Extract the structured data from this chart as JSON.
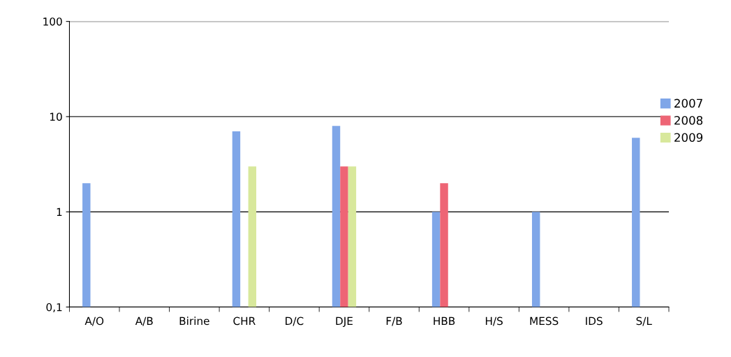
{
  "chart_data": {
    "type": "bar",
    "log": true,
    "grid": "y",
    "legend": "right",
    "categories": [
      "A/O",
      "A/B",
      "Birine",
      "CHR",
      "D/C",
      "DJE",
      "F/B",
      "HBB",
      "H/S",
      "MESS",
      "IDS",
      "S/L"
    ],
    "ylim": [
      0.1,
      100
    ],
    "yticks": [
      {
        "value": 0.1,
        "label": "0,1"
      },
      1,
      10,
      100
    ],
    "series": [
      {
        "name": "2007",
        "color": "#7fa6e8",
        "values": [
          2,
          null,
          null,
          7,
          null,
          8,
          null,
          1,
          null,
          1,
          null,
          6
        ]
      },
      {
        "name": "2008",
        "color": "#ee6575",
        "values": [
          null,
          null,
          null,
          null,
          null,
          3,
          null,
          2,
          null,
          null,
          null,
          null
        ]
      },
      {
        "name": "2009",
        "color": "#d8e89c",
        "values": [
          null,
          null,
          null,
          3,
          null,
          3,
          null,
          null,
          null,
          null,
          null,
          null
        ]
      }
    ]
  }
}
